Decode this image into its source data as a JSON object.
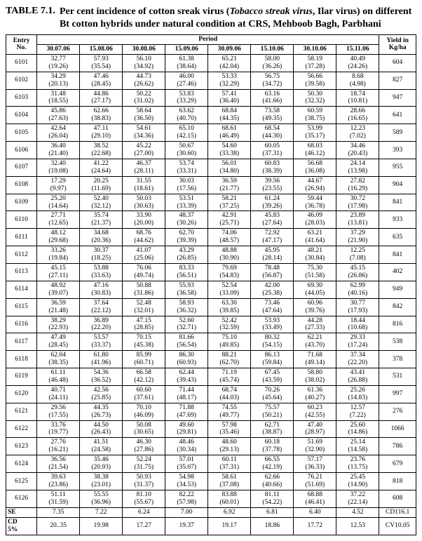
{
  "title_label": "TABLE 7.1.",
  "title_html": "Per cent incidence of cotton sreak virus (<i>Tobacco streak virus</i>, Ilar virus) on different Bt cotton hybrids under natural condition at CRS, Mehboob Bagh, Parbhani",
  "headers": {
    "entry": "Entry\nNo.",
    "period": "Period",
    "yield": "Yield in\nKg/ha",
    "dates": [
      "30.07.06",
      "15.08.06",
      "30.08.06",
      "15.09.06",
      "30.09.06",
      "15.10.06",
      "30.10.06",
      "15.11.06"
    ]
  },
  "rows": [
    {
      "entry": "6101",
      "cells": [
        [
          "32.77",
          "(19.26)"
        ],
        [
          "57.93",
          "(35.54)"
        ],
        [
          "56.10",
          "(34.92)"
        ],
        [
          "61.38",
          "(38.64)"
        ],
        [
          "65.21",
          "(42.04)"
        ],
        [
          "58.00",
          "(36.26)"
        ],
        [
          "58.19",
          "(37.28)"
        ],
        [
          "40.49",
          "(24.26)"
        ]
      ],
      "yield": "604"
    },
    {
      "entry": "6102",
      "cells": [
        [
          "34.29",
          "(20.13)"
        ],
        [
          "47.46",
          "(28.45)"
        ],
        [
          "44.73",
          "(26.62)"
        ],
        [
          "46.00",
          "(27.46)"
        ],
        [
          "53.33",
          "(32.29)"
        ],
        [
          "56.75",
          "(34.72)"
        ],
        [
          "56.66",
          "(39.58)"
        ],
        [
          "8.68",
          "(4.98)"
        ]
      ],
      "yield": "827"
    },
    {
      "entry": "6103",
      "cells": [
        [
          "31.48",
          "(18.55)"
        ],
        [
          "44.86",
          "(27.17)"
        ],
        [
          "50.22",
          "(31.02)"
        ],
        [
          "53.83",
          "(33.29)"
        ],
        [
          "57.41",
          "(36.40)"
        ],
        [
          "63.16",
          "(41.66)"
        ],
        [
          "50.30",
          "(32.32)"
        ],
        [
          "18.74",
          "(10.81)"
        ]
      ],
      "yield": "947"
    },
    {
      "entry": "6104",
      "cells": [
        [
          "45.86",
          "(27.63)"
        ],
        [
          "62.66",
          "(38.83)"
        ],
        [
          "58.64",
          "(36.50)"
        ],
        [
          "63.62",
          "(40.70)"
        ],
        [
          "68.84",
          "(44.35)"
        ],
        [
          "73.58",
          "(49.35)"
        ],
        [
          "60.59",
          "(38.75)"
        ],
        [
          "28.66",
          "(16.65)"
        ]
      ],
      "yield": "641"
    },
    {
      "entry": "6105",
      "cells": [
        [
          "42.64",
          "(26.04)"
        ],
        [
          "47.11",
          "(29.10)"
        ],
        [
          "54.61",
          "(34.36)"
        ],
        [
          "65.10",
          "(42.15)"
        ],
        [
          "68.61",
          "(46.49)"
        ],
        [
          "68.54",
          "(44.30)"
        ],
        [
          "53.99",
          "(35.17)"
        ],
        [
          "12.23",
          "(7.02)"
        ]
      ],
      "yield": "589"
    },
    {
      "entry": "6106",
      "cells": [
        [
          "36.40",
          "(21.40)"
        ],
        [
          "38.52",
          "(22.68)"
        ],
        [
          "45.22",
          "(27.00)"
        ],
        [
          "50.67",
          "(30.60)"
        ],
        [
          "54.60",
          "(33.38)"
        ],
        [
          "60.05",
          "(37.31)"
        ],
        [
          "68.03",
          "(46.12)"
        ],
        [
          "34.46",
          "(20.43)"
        ]
      ],
      "yield": "393"
    },
    {
      "entry": "6107",
      "cells": [
        [
          "32.40",
          "(19.08)"
        ],
        [
          "41.22",
          "(24.64)"
        ],
        [
          "46.37",
          "(28.11)"
        ],
        [
          "53.74",
          "(33.31)"
        ],
        [
          "56.01",
          "(34.80)"
        ],
        [
          "60.83",
          "(38.39)"
        ],
        [
          "56.68",
          "(36.08)"
        ],
        [
          "24.14",
          "(13.98)"
        ]
      ],
      "yield": "955"
    },
    {
      "entry": "6108",
      "cells": [
        [
          "17.29",
          "(9.97)"
        ],
        [
          "20.25",
          "(11.69)"
        ],
        [
          "31.55",
          "(18.61)"
        ],
        [
          "30.03",
          "(17.56)"
        ],
        [
          "36.59",
          "(21.77)"
        ],
        [
          "39.56",
          "(23.55)"
        ],
        [
          "44.67",
          "(26.94)"
        ],
        [
          "27.82",
          "(16.29)"
        ]
      ],
      "yield": "904"
    },
    {
      "entry": "6109",
      "cells": [
        [
          "25.20",
          "(14.64)"
        ],
        [
          "52.40",
          "(32.12)"
        ],
        [
          "50.03",
          "(30.63)"
        ],
        [
          "53.51",
          "(33.39)"
        ],
        [
          "58.21",
          "(37.25)"
        ],
        [
          "61.24",
          "(39.26)"
        ],
        [
          "59.44",
          "(36.78)"
        ],
        [
          "30.72",
          "(17.98)"
        ]
      ],
      "yield": "841"
    },
    {
      "entry": "6110",
      "cells": [
        [
          "27.71",
          "(12.65)"
        ],
        [
          "35.74",
          "(21.37)"
        ],
        [
          "33.90",
          "(20.00)"
        ],
        [
          "48.37",
          "(30.26)"
        ],
        [
          "42.91",
          "(25.71)"
        ],
        [
          "45.83",
          "(27.64)"
        ],
        [
          "46.09",
          "(28.03)"
        ],
        [
          "23.89",
          "(13.81)"
        ]
      ],
      "yield": "933"
    },
    {
      "entry": "6111",
      "cells": [
        [
          "48.12",
          "(29.68)"
        ],
        [
          "34.68",
          "(20.36)"
        ],
        [
          "68.76",
          "(44.62)"
        ],
        [
          "62.70",
          "(39.39)"
        ],
        [
          "74.06",
          "(48.57)"
        ],
        [
          "72.92",
          "(47.17)"
        ],
        [
          "63.21",
          "(41.64)"
        ],
        [
          "37.29",
          "(21.90)"
        ]
      ],
      "yield": "635"
    },
    {
      "entry": "6112",
      "cells": [
        [
          "33.26",
          "(19.84)"
        ],
        [
          "30.37",
          "(18.25)"
        ],
        [
          "41.07",
          "(25.06)"
        ],
        [
          "43.29",
          "(26.85)"
        ],
        [
          "48.88",
          "(30.90)"
        ],
        [
          "45.95",
          "(28.14)"
        ],
        [
          "48.21",
          "(30.84)"
        ],
        [
          "12.25",
          "(7.08)"
        ]
      ],
      "yield": "841"
    },
    {
      "entry": "6113",
      "cells": [
        [
          "45.15",
          "(27.11)"
        ],
        [
          "53.88",
          "(33.63)"
        ],
        [
          "76.06",
          "(49.74)"
        ],
        [
          "83.33",
          "(56.51)"
        ],
        [
          "79.69",
          "(54.83)"
        ],
        [
          "78.48",
          "(56.87)"
        ],
        [
          "75.30",
          "(51.58)"
        ],
        [
          "45.15",
          "(26.86)"
        ]
      ],
      "yield": "402"
    },
    {
      "entry": "6114",
      "cells": [
        [
          "48.92",
          "(39.07)"
        ],
        [
          "47.16",
          "(30.83)"
        ],
        [
          "50.88",
          "(31.86)"
        ],
        [
          "55.93",
          "(36.58)"
        ],
        [
          "52.54",
          "(33.09)"
        ],
        [
          "42.00",
          "(25.38)"
        ],
        [
          "69.30",
          "(44.05)"
        ],
        [
          "62.99",
          "(40.16)"
        ]
      ],
      "yield": "949"
    },
    {
      "entry": "6115",
      "cells": [
        [
          "36.59",
          "(21.48)"
        ],
        [
          "37.64",
          "(22.12)"
        ],
        [
          "52.48",
          "(32.01)"
        ],
        [
          "58.93",
          "(36.32)"
        ],
        [
          "63.30",
          "(39.85)"
        ],
        [
          "73.46",
          "(47.64)"
        ],
        [
          "60.96",
          "(39.76)"
        ],
        [
          "30.77",
          "(17.93)"
        ]
      ],
      "yield": "842"
    },
    {
      "entry": "6116",
      "cells": [
        [
          "38.29",
          "(22.93)"
        ],
        [
          "36.89",
          "(22.20)"
        ],
        [
          "47.15",
          "(28.85)"
        ],
        [
          "52.60",
          "(32.71)"
        ],
        [
          "52.42",
          "(32.59)"
        ],
        [
          "53.93",
          "(33.49)"
        ],
        [
          "44.28",
          "(27.33)"
        ],
        [
          "18.44",
          "(10.68)"
        ]
      ],
      "yield": "816"
    },
    {
      "entry": "6117",
      "cells": [
        [
          "47.49",
          "(28.45)"
        ],
        [
          "53.57",
          "(33.37)"
        ],
        [
          "70.15",
          "(45.38)"
        ],
        [
          "81.66",
          "(56.54)"
        ],
        [
          "75.10",
          "(49.85)"
        ],
        [
          "80.32",
          "(54.15)"
        ],
        [
          "62.21",
          "(43.70)"
        ],
        [
          "29.33",
          "(17.24)"
        ]
      ],
      "yield": "538"
    },
    {
      "entry": "6118",
      "cells": [
        [
          "62.04",
          "(38.35)"
        ],
        [
          "61.80",
          "(41.96)"
        ],
        [
          "85.99",
          "(60.71)"
        ],
        [
          "86.30",
          "(60.93)"
        ],
        [
          "88.21",
          "(62.70)"
        ],
        [
          "86.13",
          "(59.84)"
        ],
        [
          "71.68",
          "(49.14)"
        ],
        [
          "37.34",
          "(22.20)"
        ]
      ],
      "yield": "378"
    },
    {
      "entry": "6119",
      "cells": [
        [
          "61.11",
          "(46.48)"
        ],
        [
          "54.36",
          "(36.52)"
        ],
        [
          "66.58",
          "(42.12)"
        ],
        [
          "62.44",
          "(39.43)"
        ],
        [
          "71.19",
          "(45.74)"
        ],
        [
          "67.45",
          "(43.59)"
        ],
        [
          "58.80",
          "(38.02)"
        ],
        [
          "43.41",
          "(26.88)"
        ]
      ],
      "yield": "531"
    },
    {
      "entry": "6120",
      "cells": [
        [
          "40.71",
          "(24.11)"
        ],
        [
          "42.56",
          "(25.85)"
        ],
        [
          "60.60",
          "(37.61)"
        ],
        [
          "71.44",
          "(48.17)"
        ],
        [
          "68.74",
          "(44.03)"
        ],
        [
          "70.26",
          "(45.64)"
        ],
        [
          "61.36",
          "(40.27)"
        ],
        [
          "25.26",
          "(14.83)"
        ]
      ],
      "yield": "997"
    },
    {
      "entry": "6121",
      "cells": [
        [
          "29.56",
          "(17.55)"
        ],
        [
          "44.35",
          "(26.73)"
        ],
        [
          "70.10",
          "(46.09)"
        ],
        [
          "71.88",
          "(47.69)"
        ],
        [
          "74.55",
          "(49.77)"
        ],
        [
          "75.57",
          "(50.21)"
        ],
        [
          "60.23",
          "(42.55)"
        ],
        [
          "12.57",
          "(7.22)"
        ]
      ],
      "yield": "276"
    },
    {
      "entry": "6122",
      "cells": [
        [
          "33.76",
          "(19.77)"
        ],
        [
          "44.50",
          "(26.43)"
        ],
        [
          "50.08",
          "(30.65)"
        ],
        [
          "49.60",
          "(29.81)"
        ],
        [
          "57.98",
          "(35.46)"
        ],
        [
          "62.71",
          "(38.87)"
        ],
        [
          "47.40",
          "(28.97)"
        ],
        [
          "25.60",
          "(14.86)"
        ]
      ],
      "yield": "1066"
    },
    {
      "entry": "6123",
      "cells": [
        [
          "27.76",
          "(16.21)"
        ],
        [
          "41.51",
          "(24.58)"
        ],
        [
          "46.30",
          "(27.86)"
        ],
        [
          "48.46",
          "(30.34)"
        ],
        [
          "48.60",
          "(29.13)"
        ],
        [
          "60.18",
          "(37.78)"
        ],
        [
          "51.69",
          "(32.90)"
        ],
        [
          "25.14",
          "(14.58)"
        ]
      ],
      "yield": "786"
    },
    {
      "entry": "6124",
      "cells": [
        [
          "36.56",
          "(21.54)"
        ],
        [
          "35.46",
          "(20.93)"
        ],
        [
          "52.24",
          "(31.75)"
        ],
        [
          "57.01",
          "(35.07)"
        ],
        [
          "60.11",
          "(37.31)"
        ],
        [
          "66.55",
          "(42.19)"
        ],
        [
          "57.17",
          "(36.33)"
        ],
        [
          "23.76",
          "(13.75)"
        ]
      ],
      "yield": "679"
    },
    {
      "entry": "6125",
      "cells": [
        [
          "39.63",
          "(23.86)"
        ],
        [
          "38.38",
          "(23.01)"
        ],
        [
          "50.93",
          "(31.37)"
        ],
        [
          "54.98",
          "(34.53)"
        ],
        [
          "58.61",
          "(37.08)"
        ],
        [
          "62.66",
          "(40.66)"
        ],
        [
          "76.21",
          "(51.69)"
        ],
        [
          "25.45",
          "(14.90)"
        ]
      ],
      "yield": "818"
    },
    {
      "entry": "6126",
      "cells": [
        [
          "51.11",
          "(31.59)"
        ],
        [
          "55.55",
          "(36.96)"
        ],
        [
          "81.10",
          "(55.67)"
        ],
        [
          "82.22",
          "(57.98)"
        ],
        [
          "83.88",
          "(60.01)"
        ],
        [
          "81.11",
          "(54.22)"
        ],
        [
          "68.88",
          "(46.41)"
        ],
        [
          "37.22",
          "(22.14)"
        ]
      ],
      "yield": "608"
    }
  ],
  "footer": [
    {
      "entry": "SE",
      "cells": [
        "7.35",
        "7.22",
        "6.24",
        "7.00",
        "6.92",
        "6.81",
        "6.40",
        "4.52"
      ],
      "yield": "CD116.1"
    },
    {
      "entry": "CD\n5%",
      "cells": [
        "20..35",
        "19.98",
        "17.27",
        "19.37",
        "19.17",
        "18.86",
        "17.72",
        "12.53"
      ],
      "yield": "CV10.05"
    }
  ]
}
